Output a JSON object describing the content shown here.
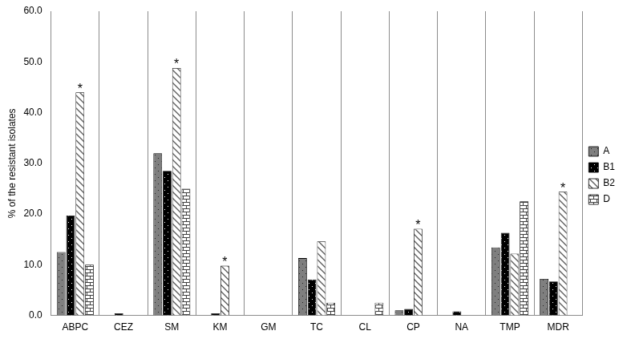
{
  "chart_data": {
    "type": "bar",
    "y_label": "% of the resistant isolates",
    "categories": [
      "ABPC",
      "CEZ",
      "SM",
      "KM",
      "GM",
      "TC",
      "CL",
      "CP",
      "NA",
      "TMP",
      "MDR"
    ],
    "series": [
      {
        "name": "A",
        "color": "#7f7f7f",
        "values": [
          12.5,
          0,
          32.0,
          0,
          0,
          11.3,
          0,
          1.0,
          0,
          13.4,
          7.2
        ]
      },
      {
        "name": "B1",
        "color": "#000000",
        "values": [
          19.7,
          0.4,
          28.5,
          0.4,
          0,
          7.1,
          0,
          1.3,
          0.8,
          16.3,
          6.7
        ]
      },
      {
        "name": "B2",
        "color": "#595959",
        "values": [
          44.0,
          0,
          48.8,
          9.8,
          0,
          14.6,
          0,
          17.1,
          0,
          12.2,
          24.4
        ]
      },
      {
        "name": "D",
        "color": "#404040",
        "values": [
          10.0,
          0,
          25.0,
          0,
          0,
          2.5,
          2.5,
          0,
          0,
          22.5,
          0
        ]
      }
    ],
    "annotations": [
      {
        "category": "ABPC",
        "series": "B2",
        "text": "*"
      },
      {
        "category": "SM",
        "series": "B2",
        "text": "*"
      },
      {
        "category": "KM",
        "series": "B2",
        "text": "*"
      },
      {
        "category": "CP",
        "series": "B2",
        "text": "*"
      },
      {
        "category": "MDR",
        "series": "B2",
        "text": "*"
      }
    ],
    "ylim": [
      0,
      60
    ],
    "yticks": [
      {
        "value": 0,
        "label": "0.0"
      },
      {
        "value": 10,
        "label": "10.0"
      },
      {
        "value": 20,
        "label": "20.0"
      },
      {
        "value": 30,
        "label": "30.0"
      },
      {
        "value": 40,
        "label": "40.0"
      },
      {
        "value": 50,
        "label": "50.0"
      },
      {
        "value": 60,
        "label": "60.0"
      }
    ],
    "grid": "x",
    "legend": "right"
  }
}
